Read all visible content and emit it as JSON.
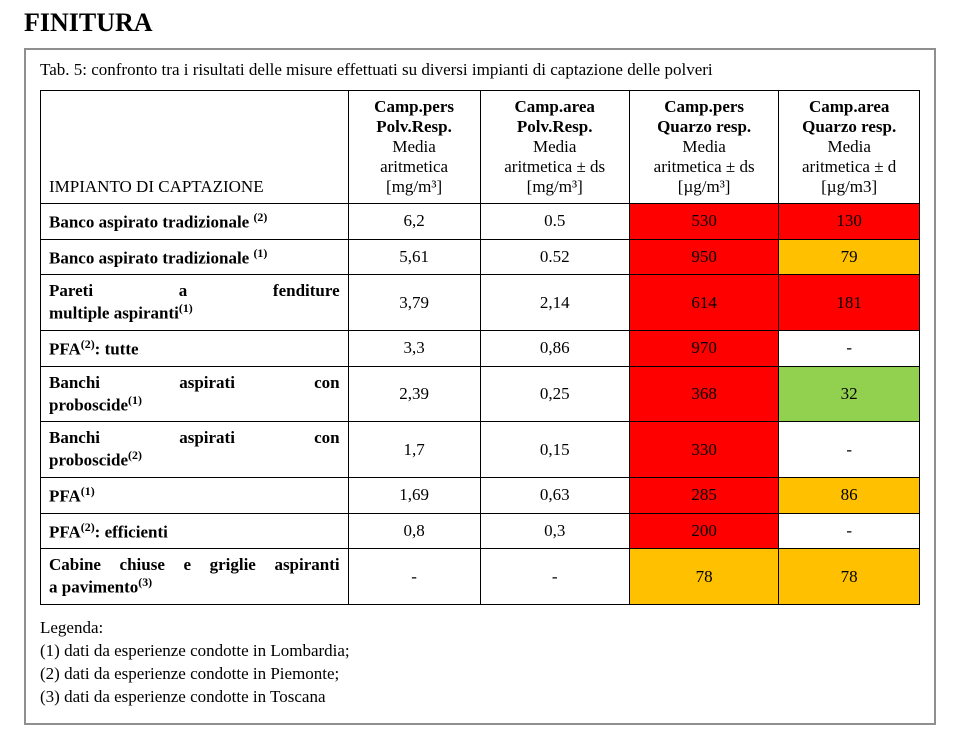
{
  "page_title": "FINITURA",
  "caption": "Tab. 5: confronto tra i risultati delle misure effettuati su diversi impianti di captazione delle polveri",
  "columns": {
    "impianto": {
      "label": "IMPIANTO DI CAPTAZIONE"
    },
    "c1": {
      "l1": "Camp.pers",
      "l2": "Polv.Resp.",
      "l3": "Media",
      "l4": "aritmetica",
      "l5": "[mg/m³]"
    },
    "c2": {
      "l1": "Camp.area",
      "l2": "Polv.Resp.",
      "l3": "Media",
      "l4": "aritmetica ± ds",
      "l5": "[mg/m³]"
    },
    "c3": {
      "l1": "Camp.pers",
      "l2": "Quarzo resp.",
      "l3": "Media",
      "l4": "aritmetica ± ds",
      "l5": "[µg/m³]"
    },
    "c4": {
      "l1": "Camp.area",
      "l2": "Quarzo resp.",
      "l3": "Media",
      "l4": "aritmetica ± d",
      "l5": "[µg/m3]"
    }
  },
  "rows": [
    {
      "label": "Banco aspirato tradizionale ⁽²⁾",
      "v1": "6,2",
      "v2": "0.5",
      "v3": "530",
      "v4": "130",
      "c3_color": "#ff0000",
      "c4_color": "#ff0000"
    },
    {
      "label": "Banco aspirato tradizionale ⁽¹⁾",
      "v1": "5,61",
      "v2": "0.52",
      "v3": "950",
      "v4": "79",
      "c3_color": "#ff0000",
      "c4_color": "#ffc000"
    },
    {
      "label": "Pareti a fenditure multiple aspiranti⁽¹⁾",
      "v1": "3,79",
      "v2": "2,14",
      "v3": "614",
      "v4": "181",
      "c3_color": "#ff0000",
      "c4_color": "#ff0000",
      "justify": true
    },
    {
      "label": "PFA⁽²⁾: tutte",
      "v1": "3,3",
      "v2": "0,86",
      "v3": "970",
      "v4": "-",
      "c3_color": "#ff0000",
      "c4_color": "#ffffff"
    },
    {
      "label": "Banchi aspirati con proboscide⁽¹⁾",
      "v1": "2,39",
      "v2": "0,25",
      "v3": "368",
      "v4": "32",
      "c3_color": "#ff0000",
      "c4_color": "#92d050",
      "justify": true
    },
    {
      "label": "Banchi aspirati con proboscide⁽²⁾",
      "v1": "1,7",
      "v2": "0,15",
      "v3": "330",
      "v4": "-",
      "c3_color": "#ff0000",
      "c4_color": "#ffffff",
      "justify": true
    },
    {
      "label": "PFA⁽¹⁾",
      "v1": "1,69",
      "v2": "0,63",
      "v3": "285",
      "v4": "86",
      "c3_color": "#ff0000",
      "c4_color": "#ffc000"
    },
    {
      "label": "PFA⁽²⁾: efficienti",
      "v1": "0,8",
      "v2": "0,3",
      "v3": "200",
      "v4": "-",
      "c3_color": "#ff0000",
      "c4_color": "#ffffff"
    },
    {
      "label": "Cabine chiuse e griglie aspiranti a pavimento⁽³⁾",
      "v1": "-",
      "v2": "-",
      "v3": "78",
      "v4": "78",
      "c3_color": "#ffc000",
      "c4_color": "#ffc000",
      "justify": true
    }
  ],
  "legend": {
    "title": "Legenda:",
    "l1": "(1) dati da esperienze condotte in Lombardia;",
    "l2": "(2) dati da esperienze condotte in Piemonte;",
    "l3": "(3) dati da esperienze condotte in Toscana"
  },
  "widths": {
    "c0": "35%",
    "c1": "15%",
    "c2": "17%",
    "c3": "17%",
    "c4": "16%"
  }
}
